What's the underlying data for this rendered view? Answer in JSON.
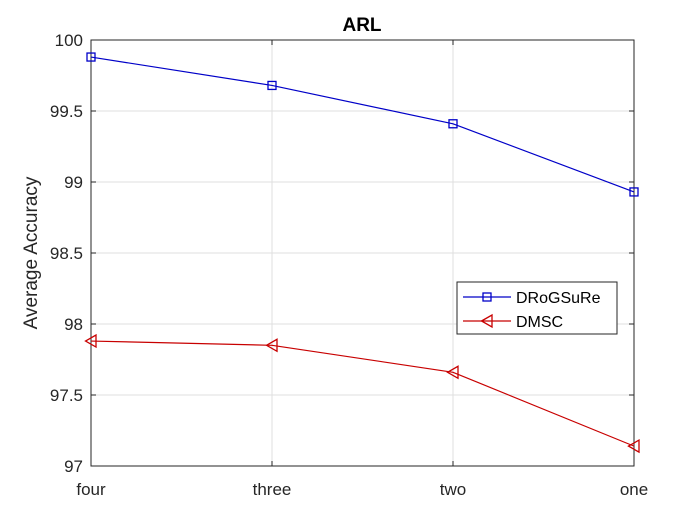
{
  "chart_data": {
    "type": "line",
    "title": "ARL",
    "xlabel": "",
    "ylabel": "Average Accuracy",
    "categories": [
      "four",
      "three",
      "two",
      "one"
    ],
    "ylim": [
      97,
      100
    ],
    "yticks": [
      "97",
      "97.5",
      "98",
      "98.5",
      "99",
      "99.5",
      "100"
    ],
    "grid": true,
    "legend_position": "right",
    "series": [
      {
        "name": "DRoGSuRe",
        "values": [
          99.88,
          99.68,
          99.41,
          98.93
        ],
        "color": "#0000c8",
        "marker": "square"
      },
      {
        "name": "DMSC",
        "values": [
          97.88,
          97.85,
          97.66,
          97.14
        ],
        "color": "#c80000",
        "marker": "triangle-left"
      }
    ]
  }
}
